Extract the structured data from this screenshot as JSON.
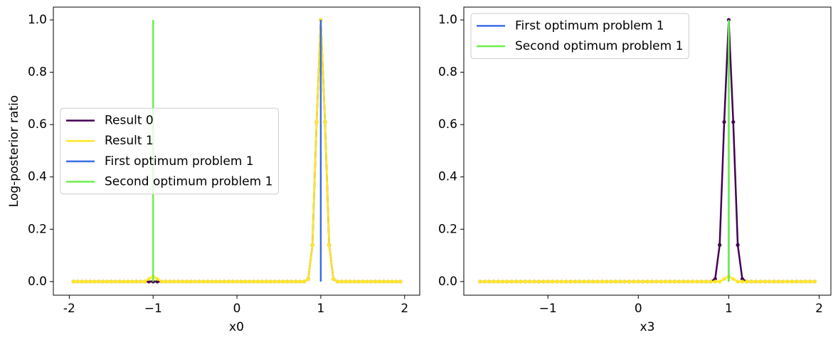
{
  "chart_data": [
    {
      "type": "line",
      "xlabel": "x0",
      "ylabel": "Log-posterior ratio",
      "legend_loc": "center left",
      "x": [
        -1.95,
        -1.9,
        -1.85,
        -1.8,
        -1.75,
        -1.7,
        -1.65,
        -1.6,
        -1.55,
        -1.5,
        -1.45,
        -1.4,
        -1.35,
        -1.3,
        -1.25,
        -1.2,
        -1.15,
        -1.1,
        -1.05,
        -1,
        -0.95,
        -0.9,
        -0.85,
        -0.8,
        -0.75,
        -0.7,
        -0.65,
        -0.6,
        -0.55,
        -0.5,
        -0.45,
        -0.4,
        -0.35,
        -0.3,
        -0.25,
        -0.2,
        -0.15,
        -0.1,
        -0.05,
        0,
        0.05,
        0.1,
        0.15,
        0.2,
        0.25,
        0.3,
        0.35,
        0.4,
        0.45,
        0.5,
        0.55,
        0.6,
        0.65,
        0.7,
        0.75,
        0.8,
        0.85,
        0.9,
        0.95,
        1,
        1.05,
        1.1,
        1.15,
        1.2,
        1.25,
        1.3,
        1.35,
        1.4,
        1.45,
        1.5,
        1.55,
        1.6,
        1.65,
        1.7,
        1.75,
        1.8,
        1.85,
        1.9,
        1.95
      ],
      "series": [
        {
          "name": "Result 0",
          "color": "#440154",
          "markers": true,
          "values": [
            0,
            0,
            0,
            0,
            0,
            0,
            0,
            0,
            0,
            0,
            0,
            0,
            0,
            0,
            0,
            0,
            0,
            0,
            0,
            0,
            0,
            0,
            0,
            0,
            0,
            0,
            0,
            0,
            0,
            0,
            0,
            0,
            0,
            0,
            0,
            0,
            0,
            0,
            0,
            0,
            0,
            0,
            0,
            0,
            0,
            0,
            0,
            0,
            0,
            0,
            0,
            0,
            0,
            0,
            0,
            0,
            0.01,
            0.14,
            0.61,
            1,
            0.61,
            0.14,
            0.01,
            0,
            0,
            0,
            0,
            0,
            0,
            0,
            0,
            0,
            0,
            0,
            0,
            0,
            0,
            0,
            0
          ]
        },
        {
          "name": "Result 1",
          "color": "#fde725",
          "markers": true,
          "values": [
            0,
            0,
            0,
            0,
            0,
            0,
            0,
            0,
            0,
            0,
            0,
            0,
            0,
            0,
            0,
            0,
            0,
            0,
            0.01,
            0.02,
            0.01,
            0,
            0,
            0,
            0,
            0,
            0,
            0,
            0,
            0,
            0,
            0,
            0,
            0,
            0,
            0,
            0,
            0,
            0,
            0,
            0,
            0,
            0,
            0,
            0,
            0,
            0,
            0,
            0,
            0,
            0,
            0,
            0,
            0,
            0,
            0,
            0.01,
            0.14,
            0.61,
            1,
            0.61,
            0.14,
            0.01,
            0,
            0,
            0,
            0,
            0,
            0,
            0,
            0,
            0,
            0,
            0,
            0,
            0,
            0,
            0,
            0
          ]
        },
        {
          "name": "First optimum problem 1",
          "color": "#3a6ee6",
          "x": [
            1,
            1
          ],
          "values": [
            0,
            1
          ]
        },
        {
          "name": "Second optimum problem 1",
          "color": "#6cf04a",
          "x": [
            -1,
            -1
          ],
          "values": [
            0,
            1
          ]
        }
      ],
      "xlim": [
        -2.19,
        2.18
      ],
      "ylim": [
        -0.052,
        1.049
      ],
      "xticks": [
        -2,
        {
          "value": -1,
          "label": "−1"
        },
        0,
        1,
        2
      ],
      "yticks": [
        {
          "value": 0,
          "label": "0.0"
        },
        0.2,
        0.4,
        0.6,
        0.8,
        {
          "value": 1,
          "label": "1.0"
        }
      ]
    },
    {
      "type": "line",
      "xlabel": "x3",
      "legend_loc": "upper left",
      "x": [
        -1.75,
        -1.7,
        -1.65,
        -1.6,
        -1.55,
        -1.5,
        -1.45,
        -1.4,
        -1.35,
        -1.3,
        -1.25,
        -1.2,
        -1.15,
        -1.1,
        -1.05,
        -1,
        -0.95,
        -0.9,
        -0.85,
        -0.8,
        -0.75,
        -0.7,
        -0.65,
        -0.6,
        -0.55,
        -0.5,
        -0.45,
        -0.4,
        -0.35,
        -0.3,
        -0.25,
        -0.2,
        -0.15,
        -0.1,
        -0.05,
        0,
        0.05,
        0.1,
        0.15,
        0.2,
        0.25,
        0.3,
        0.35,
        0.4,
        0.45,
        0.5,
        0.55,
        0.6,
        0.65,
        0.7,
        0.75,
        0.8,
        0.85,
        0.9,
        0.95,
        1,
        1.05,
        1.1,
        1.15,
        1.2,
        1.25,
        1.3,
        1.35,
        1.4,
        1.45,
        1.5,
        1.55,
        1.6,
        1.65,
        1.7,
        1.75,
        1.8,
        1.85,
        1.9,
        1.95
      ],
      "series": [
        {
          "legend": false,
          "color": "#440154",
          "markers": true,
          "values": [
            0,
            0,
            0,
            0,
            0,
            0,
            0,
            0,
            0,
            0,
            0,
            0,
            0,
            0,
            0,
            0,
            0,
            0,
            0,
            0,
            0,
            0,
            0,
            0,
            0,
            0,
            0,
            0,
            0,
            0,
            0,
            0,
            0,
            0,
            0,
            0,
            0,
            0,
            0,
            0,
            0,
            0,
            0,
            0,
            0,
            0,
            0,
            0,
            0,
            0,
            0,
            0,
            0.01,
            0.14,
            0.61,
            1,
            0.61,
            0.14,
            0.01,
            0,
            0,
            0,
            0,
            0,
            0,
            0,
            0,
            0,
            0,
            0,
            0,
            0,
            0,
            0,
            0
          ]
        },
        {
          "legend": false,
          "color": "#fde725",
          "markers": true,
          "values": [
            0,
            0,
            0,
            0,
            0,
            0,
            0,
            0,
            0,
            0,
            0,
            0,
            0,
            0,
            0,
            0,
            0,
            0,
            0,
            0,
            0,
            0,
            0,
            0,
            0,
            0,
            0,
            0,
            0,
            0,
            0,
            0,
            0,
            0,
            0,
            0,
            0,
            0,
            0,
            0,
            0,
            0,
            0,
            0,
            0,
            0,
            0,
            0,
            0,
            0,
            0,
            0,
            0,
            0,
            0.01,
            0.02,
            0.01,
            0,
            0,
            0,
            0,
            0,
            0,
            0,
            0,
            0,
            0,
            0,
            0,
            0,
            0,
            0,
            0,
            0,
            0
          ]
        },
        {
          "name": "First optimum problem 1",
          "color": "#3a6ee6",
          "x": [
            1,
            1
          ],
          "values": [
            0,
            1
          ]
        },
        {
          "name": "Second optimum problem 1",
          "color": "#6cf04a",
          "x": [
            1,
            1
          ],
          "values": [
            0,
            1
          ]
        }
      ],
      "xlim": [
        -1.93,
        2.13
      ],
      "ylim": [
        -0.052,
        1.049
      ],
      "xticks": [
        {
          "value": -1,
          "label": "−1"
        },
        0,
        1,
        2
      ],
      "yticks": [
        {
          "value": 0,
          "label": "0.0"
        },
        0.2,
        0.4,
        0.6,
        0.8,
        {
          "value": 1,
          "label": "1.0"
        }
      ]
    }
  ]
}
